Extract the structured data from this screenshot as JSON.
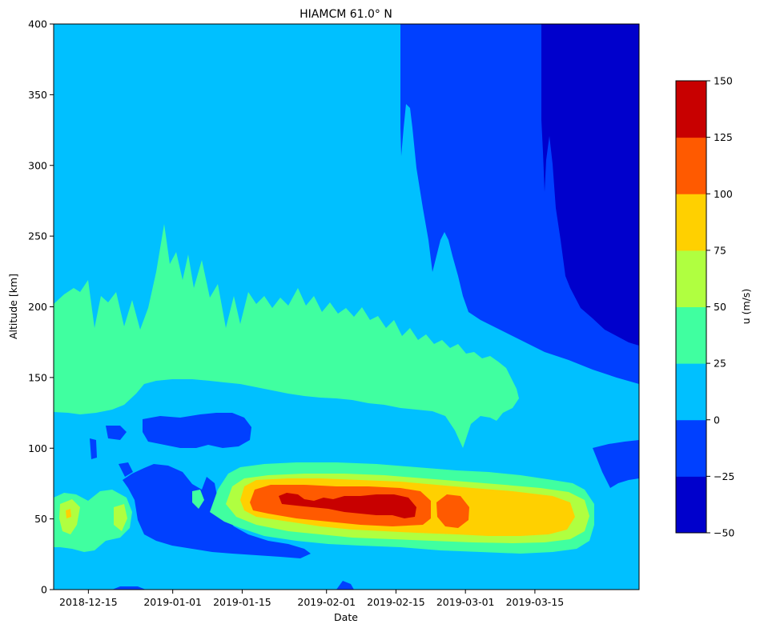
{
  "chart_data": {
    "type": "heatmap",
    "subtype": "filled-contour",
    "title": "HIAMCM 61.0° N",
    "xlabel": "Date",
    "ylabel": "Altitude [km]",
    "xlim": [
      "2018-12-08",
      "2019-04-05"
    ],
    "ylim": [
      0,
      400
    ],
    "x_ticks": [
      "2018-12-15",
      "2019-01-01",
      "2019-01-15",
      "2019-02-01",
      "2019-02-15",
      "2019-03-01",
      "2019-03-15"
    ],
    "y_ticks": [
      0,
      50,
      100,
      150,
      200,
      250,
      300,
      350,
      400
    ],
    "colorbar": {
      "label": "u (m/s)",
      "levels": [
        -50,
        -25,
        0,
        25,
        50,
        75,
        100,
        125,
        150
      ],
      "colors": [
        "#0000cc",
        "#0040ff",
        "#00c0ff",
        "#40ffa0",
        "#b0ff40",
        "#ffd000",
        "#ff5a00",
        "#c80000"
      ]
    },
    "regions": [
      {
        "name": "westerly mid-band",
        "u_range": [
          25,
          50
        ],
        "date_range": [
          "2018-12-08",
          "2019-03-12"
        ],
        "altitude_range": [
          120,
          215
        ]
      },
      {
        "name": "easterly upper region",
        "u_range": [
          -25,
          0
        ],
        "date_range": [
          "2019-02-13",
          "2019-04-05"
        ],
        "altitude_range": [
          140,
          400
        ]
      },
      {
        "name": "strong easterly corner",
        "u_range": [
          -50,
          -25
        ],
        "date_range": [
          "2019-03-12",
          "2019-04-05"
        ],
        "altitude_range": [
          175,
          400
        ]
      },
      {
        "name": "easterly pocket",
        "u_range": [
          -25,
          0
        ],
        "date_range": [
          "2018-12-30",
          "2019-01-14"
        ],
        "altitude_range": [
          100,
          125
        ]
      },
      {
        "name": "easterly lower pocket",
        "u_range": [
          -25,
          0
        ],
        "date_range": [
          "2018-12-22",
          "2019-01-25"
        ],
        "altitude_range": [
          25,
          90
        ]
      },
      {
        "name": "westerly jet core",
        "u_range": [
          75,
          150
        ],
        "date_range": [
          "2019-01-17",
          "2019-03-14"
        ],
        "altitude_range": [
          38,
          75
        ]
      },
      {
        "name": "jet maximum",
        "u_range": [
          125,
          150
        ],
        "date_range": [
          "2019-02-03",
          "2019-02-15"
        ],
        "altitude_range": [
          52,
          68
        ]
      }
    ]
  }
}
